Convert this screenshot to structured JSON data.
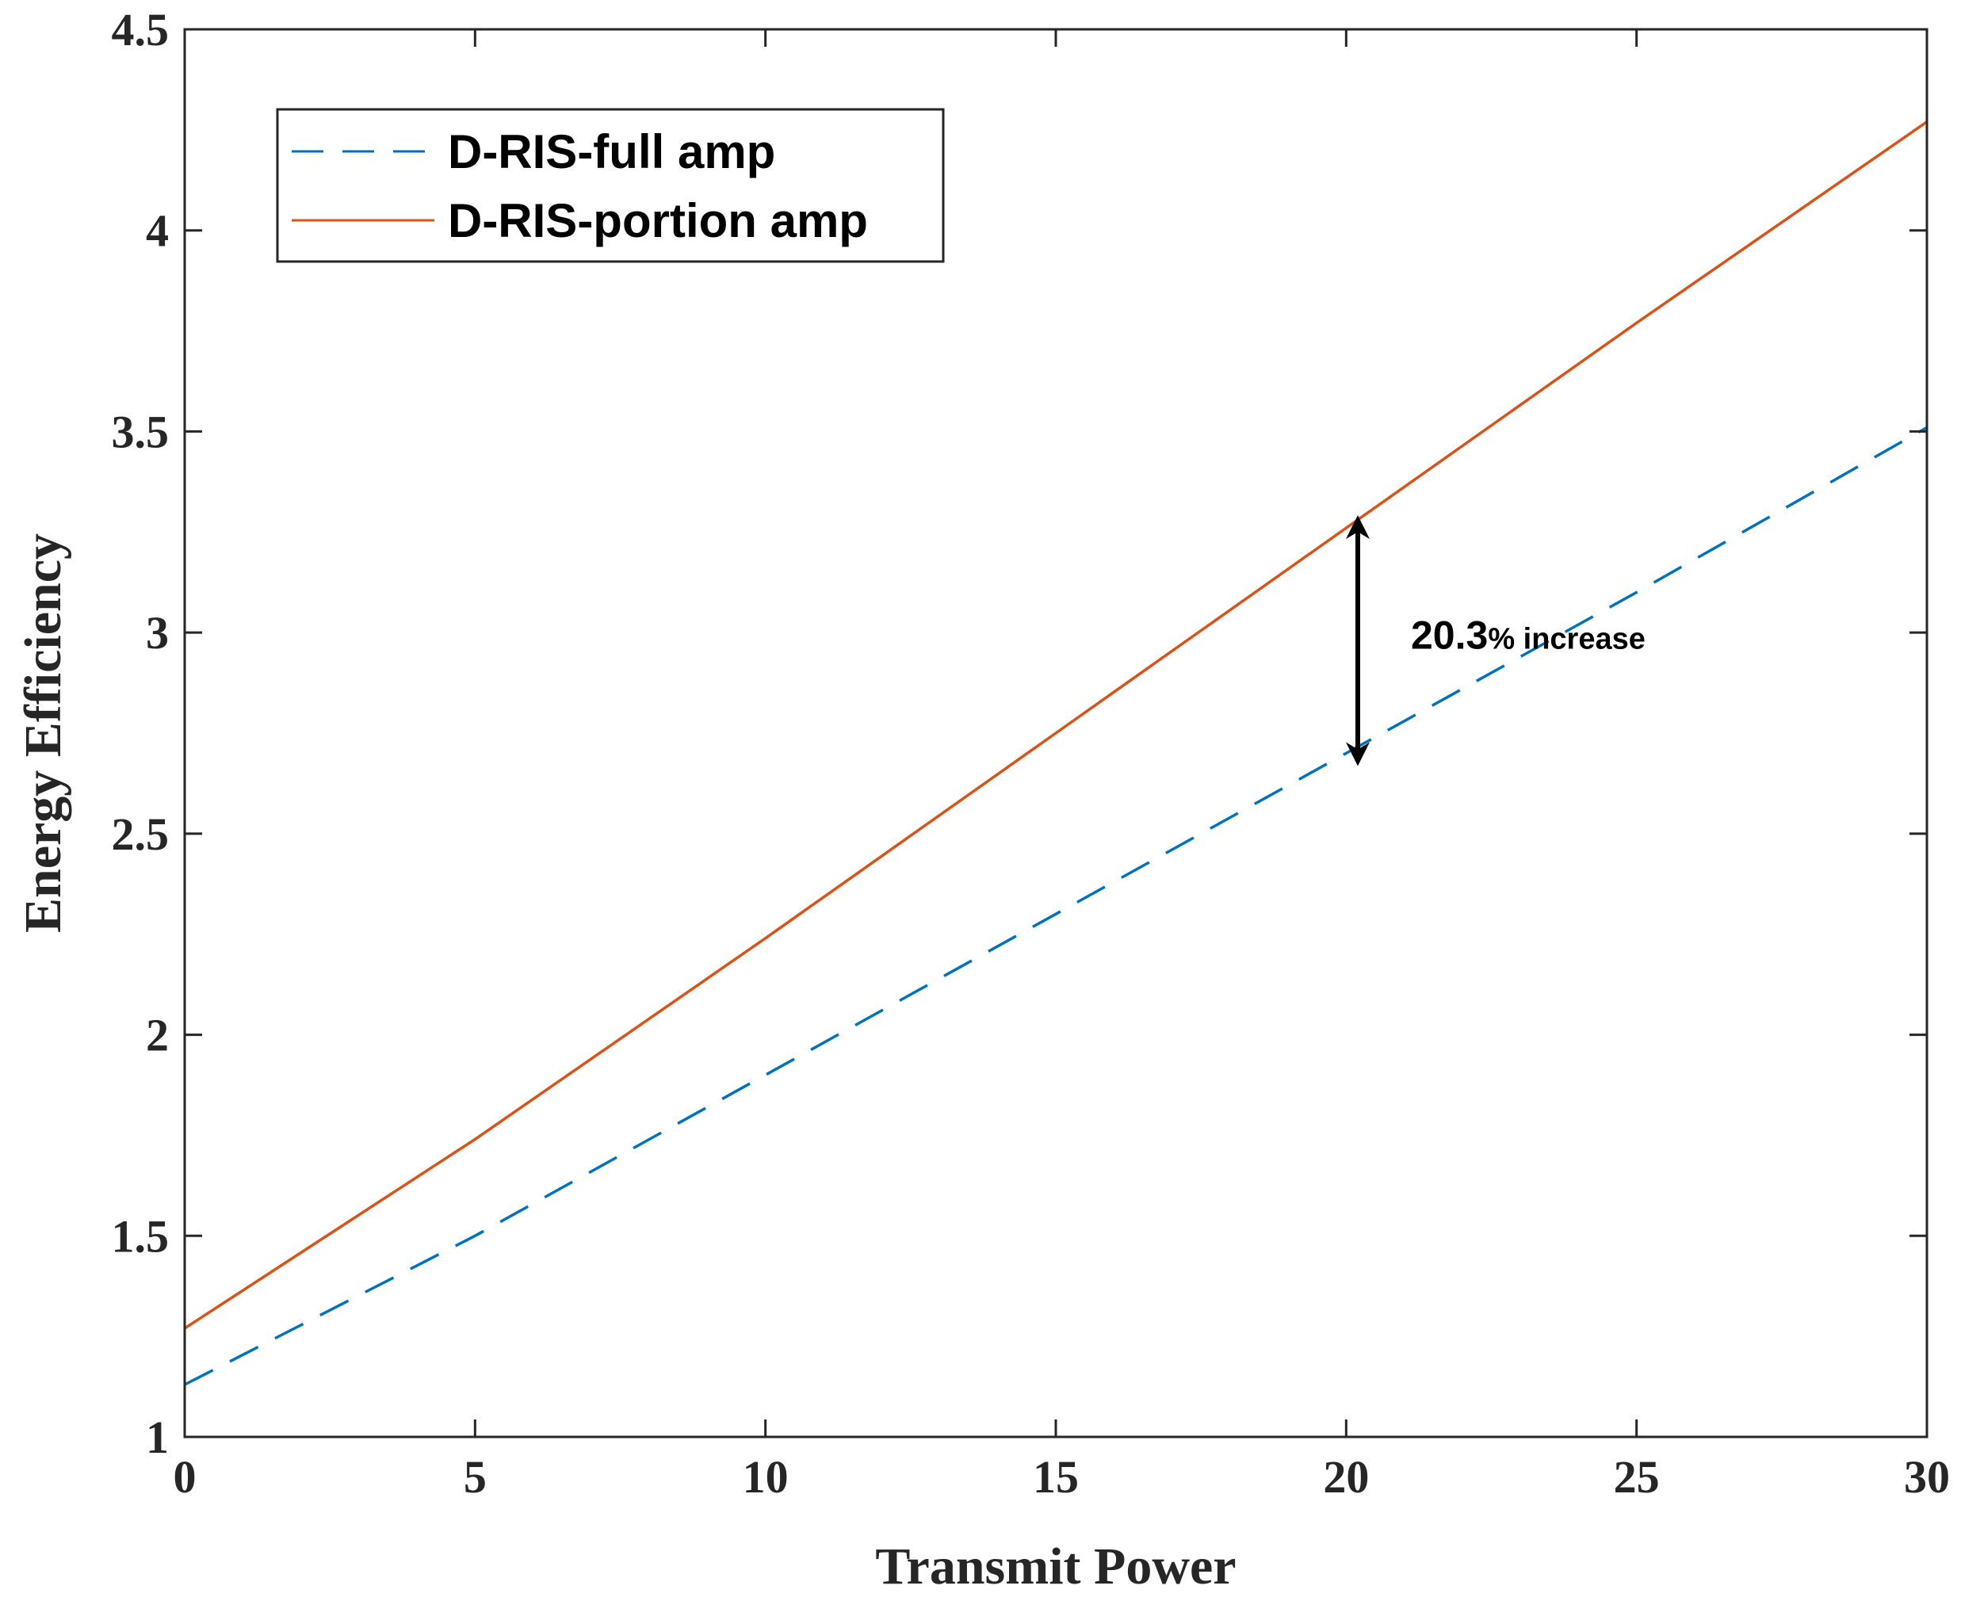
{
  "chart_data": {
    "type": "line",
    "title": "",
    "xlabel": "Transmit Power",
    "ylabel": "Energy Efficiency",
    "xlim": [
      0,
      30
    ],
    "ylim": [
      1,
      4.5
    ],
    "xticks": [
      0,
      5,
      10,
      15,
      20,
      25,
      30
    ],
    "yticks": [
      1,
      1.5,
      2,
      2.5,
      3,
      3.5,
      4,
      4.5
    ],
    "xtick_labels": [
      "0",
      "5",
      "10",
      "15",
      "20",
      "25",
      "30"
    ],
    "ytick_labels": [
      "1",
      "1.5",
      "2",
      "2.5",
      "3",
      "3.5",
      "4",
      "4.5"
    ],
    "grid": false,
    "legend_location": "top-left",
    "series": [
      {
        "name": "D-RIS-full amp",
        "color": "#0072BD",
        "style": "dashed",
        "x": [
          0,
          5,
          10,
          15,
          20,
          25,
          30
        ],
        "y": [
          1.13,
          1.5,
          1.9,
          2.3,
          2.7,
          3.1,
          3.51
        ]
      },
      {
        "name": "D-RIS-portion amp",
        "color": "#D95319",
        "style": "solid",
        "x": [
          0,
          5,
          10,
          15,
          20,
          25,
          30
        ],
        "y": [
          1.27,
          1.74,
          2.24,
          2.75,
          3.26,
          3.77,
          4.27
        ]
      }
    ],
    "annotation": {
      "value": "20.3",
      "suffix": "% increase",
      "x": 20.2,
      "y_from": 2.68,
      "y_to": 3.28
    }
  }
}
